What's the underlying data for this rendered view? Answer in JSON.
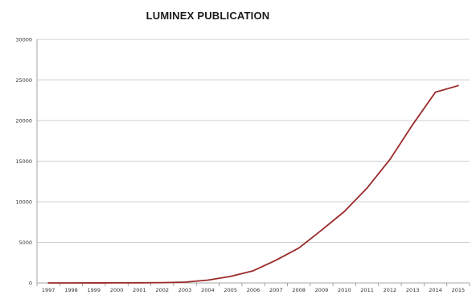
{
  "chart_data": {
    "type": "line",
    "title": "LUMINEX PUBLICATION",
    "xlabel": "",
    "ylabel": "",
    "x": [
      "1997",
      "1998",
      "1999",
      "2000",
      "2001",
      "2002",
      "2003",
      "2004",
      "2005",
      "2006",
      "2007",
      "2008",
      "2009",
      "2010",
      "2011",
      "2012",
      "2013",
      "2014",
      "2015"
    ],
    "series": [
      {
        "values": [
          0,
          0,
          5,
          10,
          20,
          40,
          100,
          350,
          800,
          1500,
          2800,
          4300,
          6500,
          8800,
          11700,
          15200,
          19500,
          23500,
          24300
        ]
      }
    ],
    "yticks": [
      0,
      5000,
      10000,
      15000,
      20000,
      25000,
      30000
    ],
    "ylim": [
      0,
      30000
    ],
    "grid": true,
    "legend": "none",
    "colors": {
      "line": "#9b2a2a",
      "grid": "#bfbfbf",
      "axis": "#8c8c8c"
    }
  }
}
